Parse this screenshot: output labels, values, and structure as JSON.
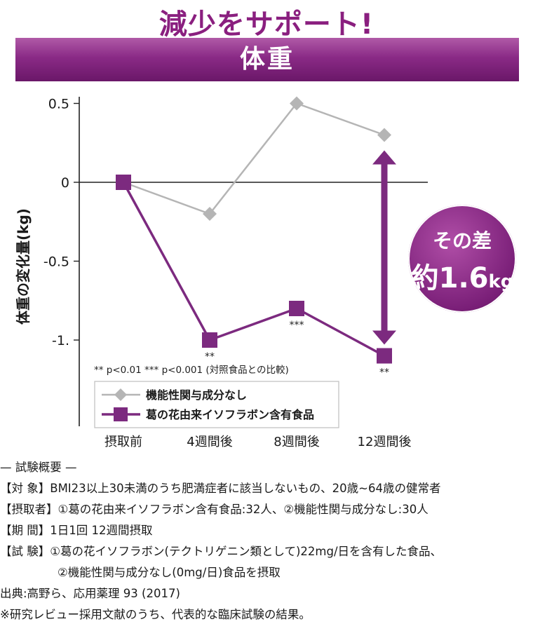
{
  "headline": "減少をサポート!",
  "banner": "体重",
  "badge": {
    "line1": "その差",
    "line2_prefix": "約",
    "line2_value": "1.6",
    "line2_unit": "kg"
  },
  "colors": {
    "purple": "#7c2a7f",
    "gray": "#b5b5b5",
    "accent": "#8a1f7f"
  },
  "chart_data": {
    "type": "line",
    "categories": [
      "摂取前",
      "4週間後",
      "8週間後",
      "12週間後"
    ],
    "ylabel": "体重の変化量(kg)",
    "ylim": [
      -1.5,
      0.5
    ],
    "yticks": [
      0.5,
      0,
      -0.5,
      -1
    ],
    "ytick_labels": [
      "0.5",
      "0",
      "-0.5",
      "-1."
    ],
    "series": [
      {
        "name": "機能性関与成分なし",
        "values": [
          0,
          -0.2,
          0.5,
          0.3
        ],
        "color": "#b5b5b5",
        "marker": "diamond"
      },
      {
        "name": "葛の花由来イソフラボン含有食品",
        "values": [
          0,
          -1.0,
          -0.8,
          -1.1
        ],
        "color": "#7c2a7f",
        "marker": "square"
      }
    ],
    "significance": [
      "",
      "**",
      "***",
      "**"
    ],
    "footnote": "** p<0.01 *** p<0.001 (対照食品との比較)",
    "legend_position": "bottom-left",
    "grid": false
  },
  "summary": {
    "heading": "— 試験概要 —",
    "target": "【対 象】BMI23以上30未満のうち肥満症者に該当しないもの、20歳~64歳の健常者",
    "groups": "【摂取者】①葛の花由来イソフラボン含有食品:32人、②機能性関与成分なし:30人",
    "period": "【期 間】1日1回 12週間摂取",
    "test1": "【試 験】①葛の花イソフラボン(テクトリゲニン類として)22mg/日を含有した食品、",
    "test2": "②機能性関与成分なし(0mg/日)食品を摂取",
    "source": "出典:高野ら、応用薬理 93 (2017)",
    "note": "※研究レビュー採用文献のうち、代表的な臨床試験の結果。"
  }
}
